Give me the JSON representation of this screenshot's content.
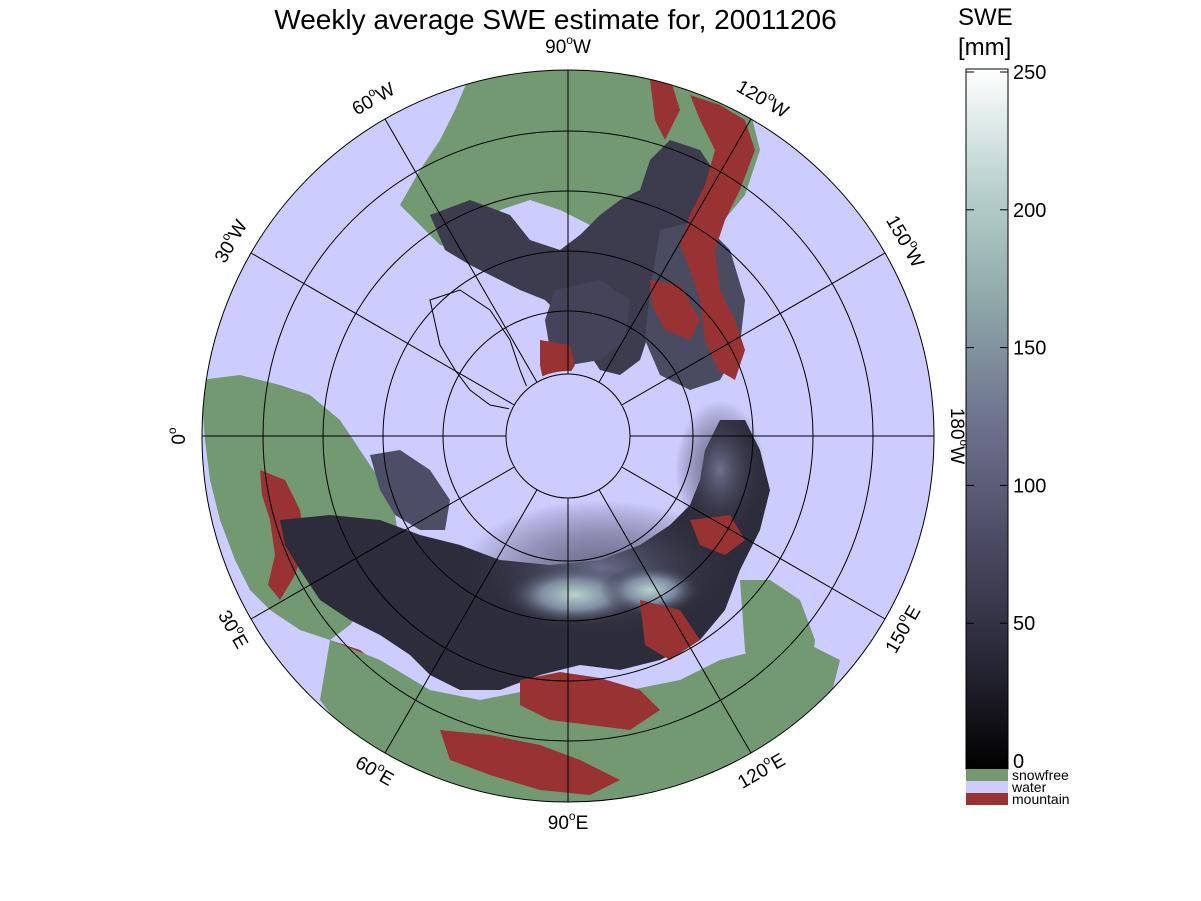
{
  "title": "Weekly average SWE estimate for, 20011206",
  "longitude_labels": [
    {
      "id": "lon-90w",
      "deg": "90",
      "hemi": "W"
    },
    {
      "id": "lon-120w",
      "deg": "120",
      "hemi": "W"
    },
    {
      "id": "lon-150w",
      "deg": "150",
      "hemi": "W"
    },
    {
      "id": "lon-180w",
      "deg": "180",
      "hemi": "W"
    },
    {
      "id": "lon-150e",
      "deg": "150",
      "hemi": "E"
    },
    {
      "id": "lon-120e",
      "deg": "120",
      "hemi": "E"
    },
    {
      "id": "lon-90e",
      "deg": "90",
      "hemi": "E"
    },
    {
      "id": "lon-60e",
      "deg": "60",
      "hemi": "E"
    },
    {
      "id": "lon-30e",
      "deg": "30",
      "hemi": "E"
    },
    {
      "id": "lon-0",
      "deg": "0",
      "hemi": ""
    },
    {
      "id": "lon-30w",
      "deg": "30",
      "hemi": "W"
    },
    {
      "id": "lon-60w",
      "deg": "60",
      "hemi": "W"
    }
  ],
  "colorbar": {
    "title_line1": "SWE",
    "title_line2": "[mm]",
    "ticks": [
      "0",
      "50",
      "100",
      "150",
      "200",
      "250"
    ],
    "gradient": [
      "#000000",
      "#2b2a3a",
      "#4d4c66",
      "#6f7390",
      "#8ea8a8",
      "#b9d2cf",
      "#ffffff"
    ]
  },
  "legend": [
    {
      "id": "snowfree",
      "label": "snowfree",
      "color": "#739972"
    },
    {
      "id": "water",
      "label": "water",
      "color": "#ccccff"
    },
    {
      "id": "mountain",
      "label": "mountain",
      "color": "#993333"
    }
  ],
  "colors": {
    "ocean": "#ccccff",
    "snowfree": "#739972",
    "mountain": "#993333",
    "snow_low": "#1e1d26",
    "snow_mid": "#5a5b78",
    "snow_high": "#a9c4c0"
  }
}
